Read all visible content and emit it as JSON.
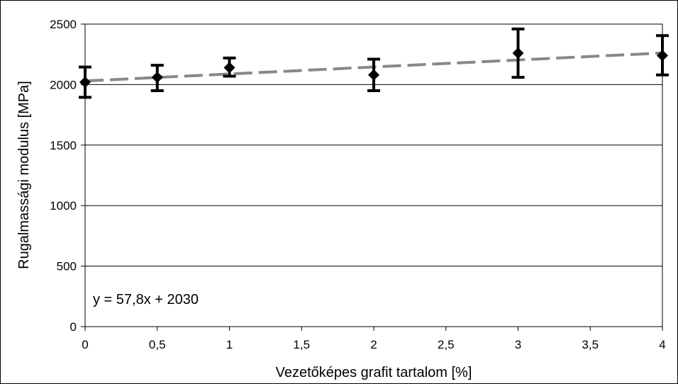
{
  "chart_data": {
    "type": "scatter",
    "title": "",
    "xlabel": "Vezetőképes grafit tartalom [%]",
    "ylabel": "Rugalmassági modulus [MPa]",
    "xlim": [
      0,
      4
    ],
    "ylim": [
      0,
      2500
    ],
    "x_ticks": [
      0,
      0.5,
      1,
      1.5,
      2,
      2.5,
      3,
      3.5,
      4
    ],
    "x_tick_labels": [
      "0",
      "0,5",
      "1",
      "1,5",
      "2",
      "2,5",
      "3",
      "3,5",
      "4"
    ],
    "y_ticks": [
      0,
      500,
      1000,
      1500,
      2000,
      2500
    ],
    "y_tick_labels": [
      "0",
      "500",
      "1000",
      "1500",
      "2000",
      "2500"
    ],
    "grid": "horizontal",
    "series": [
      {
        "x": [
          0,
          0.5,
          1,
          2,
          3,
          4
        ],
        "y": [
          2020,
          2060,
          2140,
          2080,
          2260,
          2240
        ],
        "err_low": [
          1895,
          1950,
          2070,
          1950,
          2060,
          2080
        ],
        "err_high": [
          2145,
          2160,
          2220,
          2210,
          2460,
          2405
        ],
        "color": "#000000",
        "marker": "diamond"
      }
    ],
    "trendline": {
      "equation": "y = 57,8x + 2030",
      "slope": 57.8,
      "intercept": 2030,
      "color": "#888888",
      "style": "dashed"
    }
  }
}
